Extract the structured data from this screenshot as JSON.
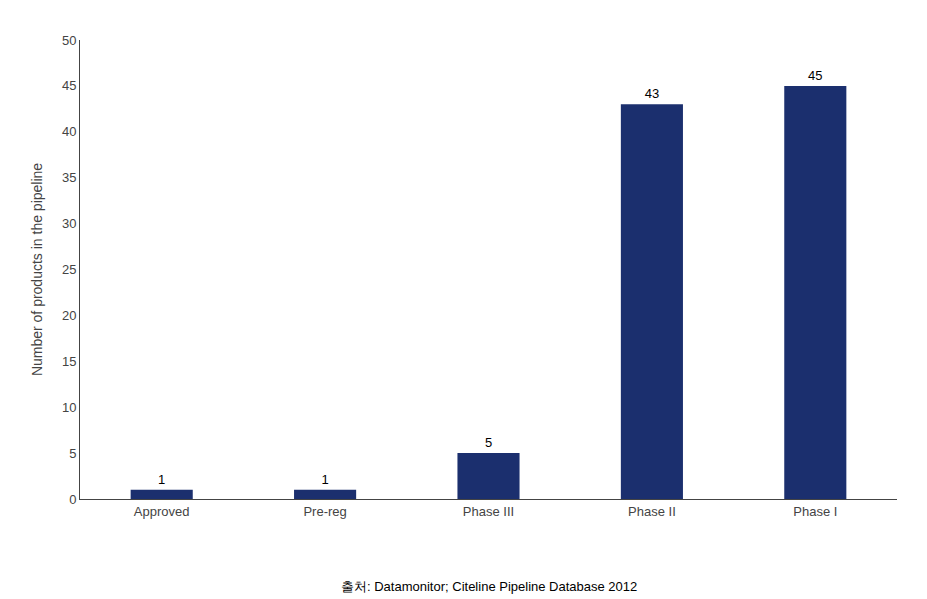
{
  "chart_data": {
    "type": "bar",
    "categories": [
      "Approved",
      "Pre-reg",
      "Phase III",
      "Phase II",
      "Phase I"
    ],
    "values": [
      1,
      1,
      5,
      43,
      45
    ],
    "color": "#1b2f6e",
    "ylabel": "Number of products in the pipeline",
    "ylim": [
      0,
      50
    ],
    "yticks": [
      0,
      5,
      10,
      15,
      20,
      25,
      30,
      35,
      40,
      45,
      50
    ],
    "annotation": "출처: Datamonitor; Citeline Pipeline Database 2012",
    "data_labels": true,
    "grid": false
  }
}
